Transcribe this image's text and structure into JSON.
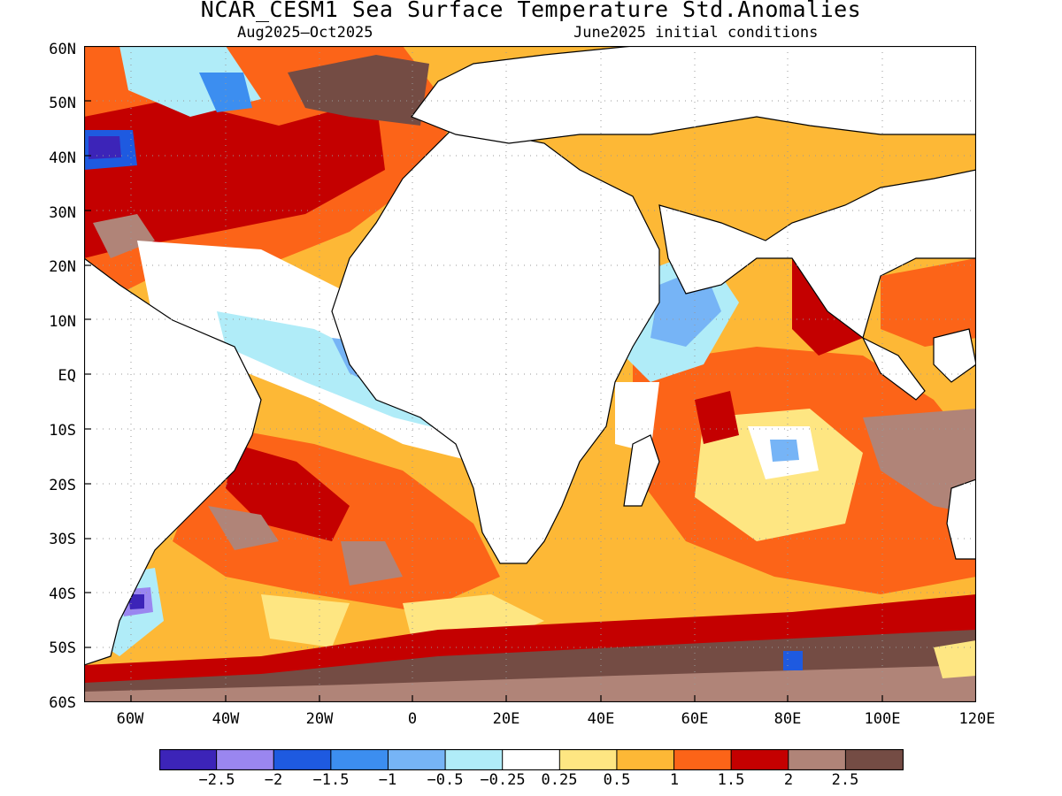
{
  "title": "NCAR_CESM1 Sea Surface Temperature Std.Anomalies",
  "subtitle_left": "Aug2025–Oct2025",
  "subtitle_right": "June2025 initial conditions",
  "lat_labels": [
    "60N",
    "50N",
    "40N",
    "30N",
    "20N",
    "10N",
    "EQ",
    "10S",
    "20S",
    "30S",
    "40S",
    "50S",
    "60S"
  ],
  "lon_labels": [
    "60W",
    "40W",
    "20W",
    "0",
    "20E",
    "40E",
    "60E",
    "80E",
    "100E",
    "120E"
  ],
  "colorbar": {
    "colors": [
      "#3c24b8",
      "#9a86f0",
      "#1e5ae0",
      "#3c8ef0",
      "#76b4f6",
      "#b0ecf8",
      "#ffffff",
      "#fee682",
      "#fdb836",
      "#fc6418",
      "#c40000",
      "#b08478",
      "#744c44"
    ],
    "labels": [
      "−2.5",
      "−2",
      "−1.5",
      "−1",
      "−0.5",
      "−0.25",
      "0.25",
      "0.5",
      "1",
      "1.5",
      "2",
      "2.5"
    ]
  },
  "palette": {
    "land": "#ffffff",
    "coast": "#000000",
    "grid": "#999999"
  }
}
